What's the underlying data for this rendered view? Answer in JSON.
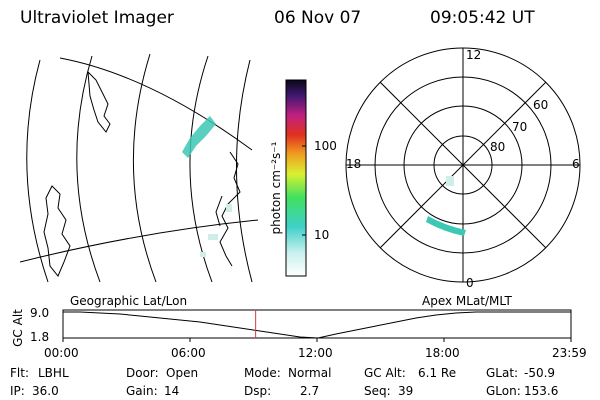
{
  "header": {
    "instrument": "Ultraviolet Imager",
    "date": "06 Nov 07",
    "time": "09:05:42 UT"
  },
  "colorbar": {
    "unit_label": "photon cm⁻²s⁻¹",
    "ticks": [
      "100",
      "10"
    ]
  },
  "polar": {
    "mlt_labels": [
      "12",
      "18",
      "6",
      "0"
    ],
    "lat_labels": [
      "60",
      "70",
      "80"
    ]
  },
  "timeline": {
    "axis_label": "GC Alt",
    "y_ticks": [
      "9.0",
      "1.8"
    ],
    "left_title": "Geographic Lat/Lon",
    "right_title": "Apex MLat/MLT",
    "x_ticks": [
      "00:00",
      "06:00",
      "12:00",
      "18:00",
      "23:59"
    ],
    "current_time_hours": 9.095
  },
  "info": {
    "row1": [
      {
        "label": "Flt:",
        "value": "LBHL"
      },
      {
        "label": "Door:",
        "value": "Open"
      },
      {
        "label": "Mode:",
        "value": "Normal"
      },
      {
        "label": "GC Alt:",
        "value": "6.1 Re"
      },
      {
        "label": "GLat:",
        "value": "-50.9"
      }
    ],
    "row2": [
      {
        "label": "IP:",
        "value": "36.0"
      },
      {
        "label": "Gain:",
        "value": "14"
      },
      {
        "label": "Dsp:",
        "value": "2.7"
      },
      {
        "label": "Seq:",
        "value": "39"
      },
      {
        "label": "GLon:",
        "value": "153.6"
      }
    ]
  },
  "colors": {
    "cursor": "#d04040",
    "aurora": "#3cc8b4"
  }
}
